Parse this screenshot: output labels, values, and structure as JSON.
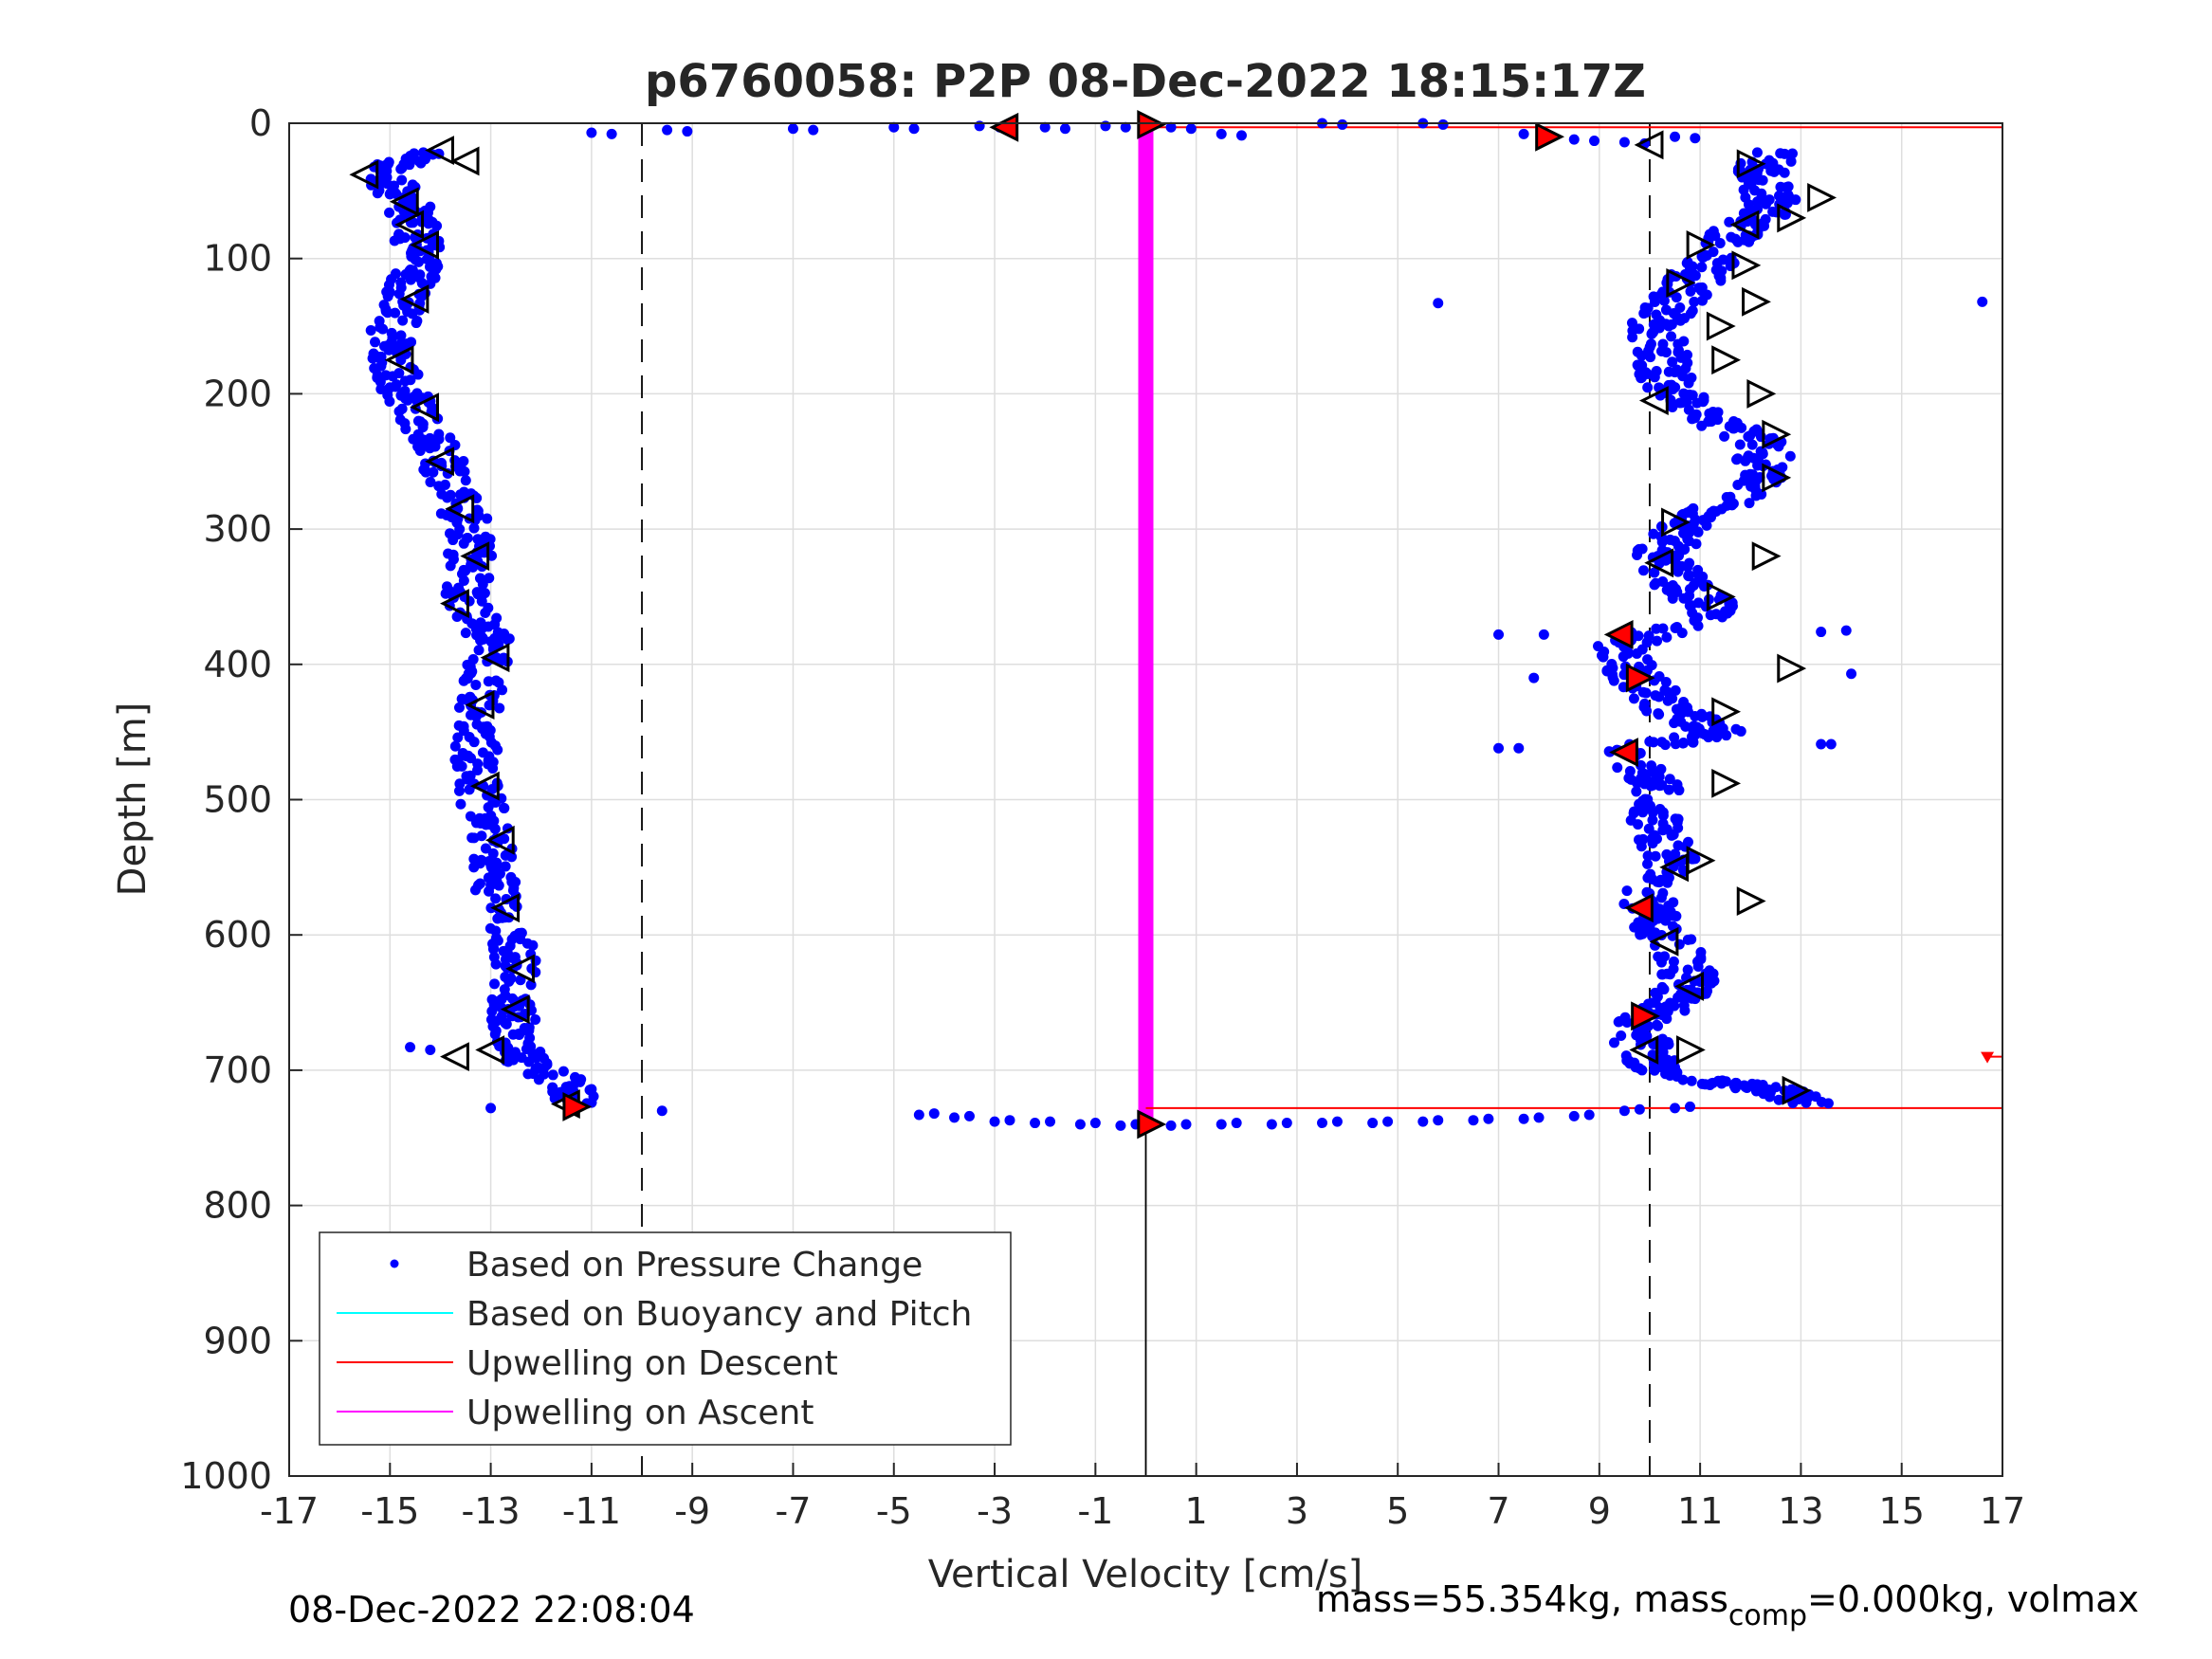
{
  "chart_data": {
    "type": "scatter",
    "title": "p6760058: P2P 08-Dec-2022 18:15:17Z",
    "xlabel": "Vertical Velocity [cm/s]",
    "ylabel": "Depth [m]",
    "xlim": [
      -17,
      17
    ],
    "ylim": [
      0,
      1000
    ],
    "y_reversed": true,
    "xticks": [
      "-17",
      "-15",
      "-13",
      "-11",
      "-9",
      "-7",
      "-5",
      "-3",
      "-1",
      "1",
      "3",
      "5",
      "7",
      "9",
      "11",
      "13",
      "15",
      "17"
    ],
    "yticks": [
      "0",
      "100",
      "200",
      "300",
      "400",
      "500",
      "600",
      "700",
      "800",
      "900",
      "1000"
    ],
    "grid": true,
    "legend_position": "bottom-left",
    "legend": [
      {
        "label": "Based on Pressure Change",
        "color": "#0000ff",
        "marker": "dot"
      },
      {
        "label": "Based on Buoyancy and Pitch",
        "color": "#00ffff",
        "marker": "line"
      },
      {
        "label": "Upwelling on Descent",
        "color": "#ff0000",
        "marker": "line"
      },
      {
        "label": "Upwelling on Ascent",
        "color": "#ff00ff",
        "marker": "line"
      }
    ],
    "colors": {
      "pressure_points": "#0000ff",
      "descent": "#ff0000",
      "ascent": "#ff00ff",
      "grid": "#dedede",
      "reference_lines": "#000000"
    },
    "reference_lines": {
      "dashed_x": [
        -10,
        10
      ],
      "solid_x": 0
    },
    "ascent_upwelling": {
      "x": 0,
      "depth_range": [
        0,
        740
      ]
    },
    "descent_upwelling_lines": [
      {
        "depth": 3,
        "x_range": [
          0,
          17
        ]
      },
      {
        "depth": 728,
        "x_range": [
          0,
          17
        ]
      },
      {
        "depth": 690,
        "x_range": [
          16.7,
          17
        ]
      }
    ],
    "left_profile": [
      [
        -14.2,
        20
      ],
      [
        -15.2,
        35
      ],
      [
        -14.6,
        60
      ],
      [
        -14.5,
        80
      ],
      [
        -14.4,
        100
      ],
      [
        -14.6,
        120
      ],
      [
        -14.9,
        145
      ],
      [
        -15.0,
        170
      ],
      [
        -14.8,
        195
      ],
      [
        -14.4,
        215
      ],
      [
        -14.1,
        240
      ],
      [
        -13.7,
        270
      ],
      [
        -13.5,
        295
      ],
      [
        -13.4,
        320
      ],
      [
        -13.5,
        350
      ],
      [
        -13.0,
        380
      ],
      [
        -13.1,
        410
      ],
      [
        -13.2,
        440
      ],
      [
        -13.3,
        470
      ],
      [
        -13.2,
        500
      ],
      [
        -13.0,
        530
      ],
      [
        -12.9,
        560
      ],
      [
        -12.7,
        590
      ],
      [
        -12.5,
        620
      ],
      [
        -12.6,
        650
      ],
      [
        -12.5,
        670
      ],
      [
        -12.4,
        690
      ],
      [
        -11.5,
        710
      ],
      [
        -11.3,
        725
      ]
    ],
    "right_profile": [
      [
        12.5,
        20
      ],
      [
        12.2,
        40
      ],
      [
        12.5,
        60
      ],
      [
        11.8,
        80
      ],
      [
        11.2,
        100
      ],
      [
        10.8,
        120
      ],
      [
        10.2,
        145
      ],
      [
        10.2,
        170
      ],
      [
        10.4,
        195
      ],
      [
        10.9,
        215
      ],
      [
        12.2,
        235
      ],
      [
        12.3,
        260
      ],
      [
        11.3,
        285
      ],
      [
        10.6,
        300
      ],
      [
        10.2,
        320
      ],
      [
        10.6,
        340
      ],
      [
        11.3,
        360
      ],
      [
        9.5,
        385
      ],
      [
        9.7,
        410
      ],
      [
        10.5,
        435
      ],
      [
        11.3,
        450
      ],
      [
        9.4,
        465
      ],
      [
        10.2,
        490
      ],
      [
        10.1,
        520
      ],
      [
        10.4,
        545
      ],
      [
        9.9,
        580
      ],
      [
        10.3,
        600
      ],
      [
        10.8,
        630
      ],
      [
        10.5,
        650
      ],
      [
        9.9,
        665
      ],
      [
        9.8,
        690
      ],
      [
        10.6,
        705
      ],
      [
        12.5,
        715
      ],
      [
        13.2,
        725
      ]
    ],
    "surface_points": [
      [
        -11,
        7
      ],
      [
        -9.5,
        5
      ],
      [
        -7,
        4
      ],
      [
        -5,
        3
      ],
      [
        -3.3,
        2
      ],
      [
        -2,
        3
      ],
      [
        -0.8,
        2
      ],
      [
        0.5,
        3
      ],
      [
        1.5,
        8
      ],
      [
        3.5,
        0
      ],
      [
        5.5,
        0
      ],
      [
        7.5,
        8
      ],
      [
        8.5,
        12
      ],
      [
        9.5,
        14
      ],
      [
        10.5,
        10
      ]
    ],
    "bottom_points": [
      [
        -4.5,
        733
      ],
      [
        -3.8,
        735
      ],
      [
        -3.0,
        738
      ],
      [
        -2.2,
        739
      ],
      [
        -1.3,
        740
      ],
      [
        -0.5,
        741
      ],
      [
        0.5,
        741
      ],
      [
        1.5,
        740
      ],
      [
        2.5,
        740
      ],
      [
        3.5,
        739
      ],
      [
        4.5,
        739
      ],
      [
        5.5,
        738
      ],
      [
        6.5,
        737
      ],
      [
        7.5,
        736
      ],
      [
        8.5,
        734
      ],
      [
        9.5,
        730
      ],
      [
        10.5,
        728
      ]
    ],
    "outlier_points": [
      [
        5.8,
        133
      ],
      [
        16.6,
        132
      ],
      [
        7.0,
        378
      ],
      [
        7.9,
        378
      ],
      [
        13.4,
        376
      ],
      [
        13.9,
        375
      ],
      [
        14.0,
        407
      ],
      [
        7.7,
        410
      ],
      [
        7.0,
        462
      ],
      [
        7.4,
        462
      ],
      [
        13.4,
        459
      ],
      [
        13.6,
        459
      ],
      [
        -14.6,
        683
      ],
      [
        -14.2,
        685
      ],
      [
        -9.6,
        730
      ],
      [
        -13.0,
        728
      ]
    ],
    "ascent_markers": [
      [
        -14.0,
        20
      ],
      [
        -13.5,
        28
      ],
      [
        -15.5,
        38
      ],
      [
        -14.7,
        58
      ],
      [
        -14.6,
        75
      ],
      [
        -14.3,
        90
      ],
      [
        -14.5,
        130
      ],
      [
        -14.8,
        175
      ],
      [
        -14.3,
        210
      ],
      [
        -14.0,
        250
      ],
      [
        -13.6,
        285
      ],
      [
        -13.3,
        320
      ],
      [
        -13.7,
        355
      ],
      [
        -12.9,
        395
      ],
      [
        -13.2,
        430
      ],
      [
        -13.1,
        490
      ],
      [
        -12.8,
        530
      ],
      [
        -12.7,
        580
      ],
      [
        -12.4,
        625
      ],
      [
        -12.5,
        655
      ],
      [
        -13.7,
        690
      ],
      [
        -13.0,
        685
      ],
      [
        -11.5,
        725
      ],
      [
        -2.8,
        3
      ],
      [
        10.0,
        16
      ],
      [
        11.9,
        75
      ],
      [
        10.1,
        205
      ],
      [
        10.2,
        325
      ],
      [
        9.4,
        378
      ],
      [
        9.5,
        465
      ],
      [
        10.5,
        550
      ],
      [
        9.8,
        580
      ],
      [
        10.3,
        605
      ],
      [
        10.8,
        638
      ],
      [
        9.9,
        685
      ]
    ],
    "descent_markers": [
      [
        0.1,
        1
      ],
      [
        12.0,
        30
      ],
      [
        13.4,
        55
      ],
      [
        12.8,
        70
      ],
      [
        11.0,
        90
      ],
      [
        11.9,
        105
      ],
      [
        10.6,
        118
      ],
      [
        12.1,
        132
      ],
      [
        11.4,
        150
      ],
      [
        11.5,
        175
      ],
      [
        12.2,
        200
      ],
      [
        12.5,
        230
      ],
      [
        12.5,
        262
      ],
      [
        10.5,
        295
      ],
      [
        12.3,
        320
      ],
      [
        11.4,
        350
      ],
      [
        12.8,
        403
      ],
      [
        11.5,
        435
      ],
      [
        11.5,
        488
      ],
      [
        11.0,
        545
      ],
      [
        12.0,
        575
      ],
      [
        10.8,
        685
      ],
      [
        12.9,
        715
      ],
      [
        0.1,
        740
      ],
      [
        8.0,
        10
      ],
      [
        9.8,
        410
      ],
      [
        9.9,
        660
      ],
      [
        -11.3,
        727
      ]
    ],
    "red_filled_markers": [
      [
        -2.8,
        3
      ],
      [
        0.1,
        1
      ],
      [
        8.0,
        10
      ],
      [
        9.4,
        378
      ],
      [
        9.8,
        410
      ],
      [
        9.5,
        465
      ],
      [
        9.8,
        580
      ],
      [
        9.9,
        660
      ],
      [
        9.8,
        688
      ],
      [
        -11.3,
        727
      ],
      [
        0.1,
        740
      ],
      [
        16.7,
        690
      ]
    ]
  },
  "footer": {
    "timestamp": "08-Dec-2022 22:08:04",
    "mass_prefix": "mass=55.354kg, mass",
    "mass_sub": "comp",
    "mass_suffix": "=0.000kg, volmax"
  }
}
